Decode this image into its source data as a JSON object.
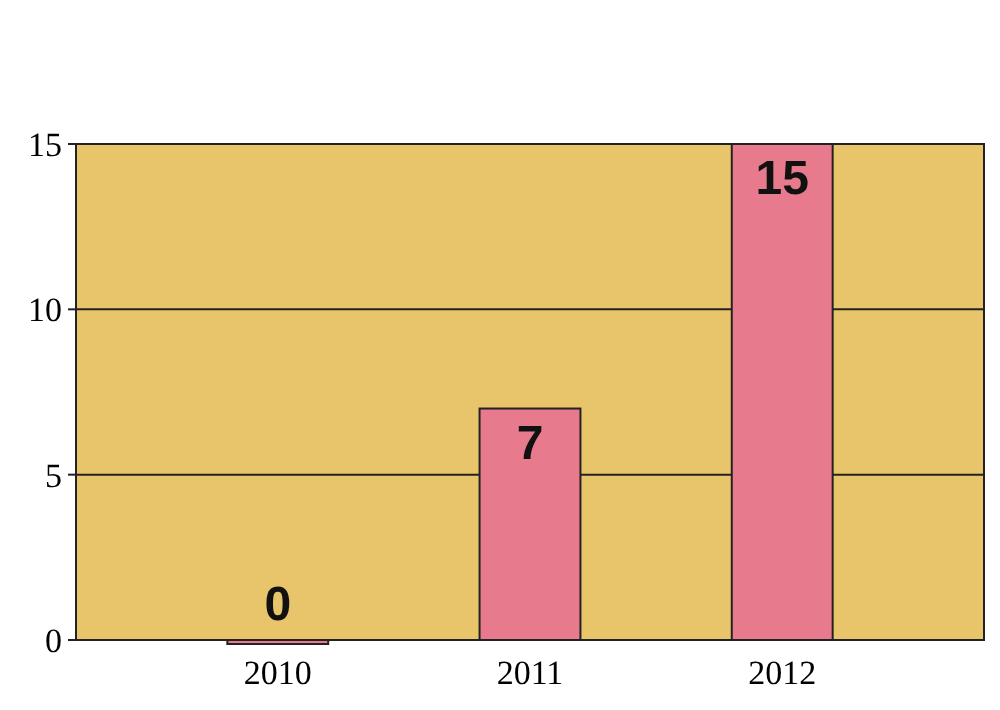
{
  "chart_data": {
    "type": "bar",
    "categories": [
      "2010",
      "2011",
      "2012"
    ],
    "values": [
      0,
      7,
      15
    ],
    "color": "#e87a8e",
    "ylim": [
      0,
      15
    ],
    "yticks": [
      0,
      5,
      10,
      15
    ],
    "grid": "y",
    "data_labels": true
  }
}
